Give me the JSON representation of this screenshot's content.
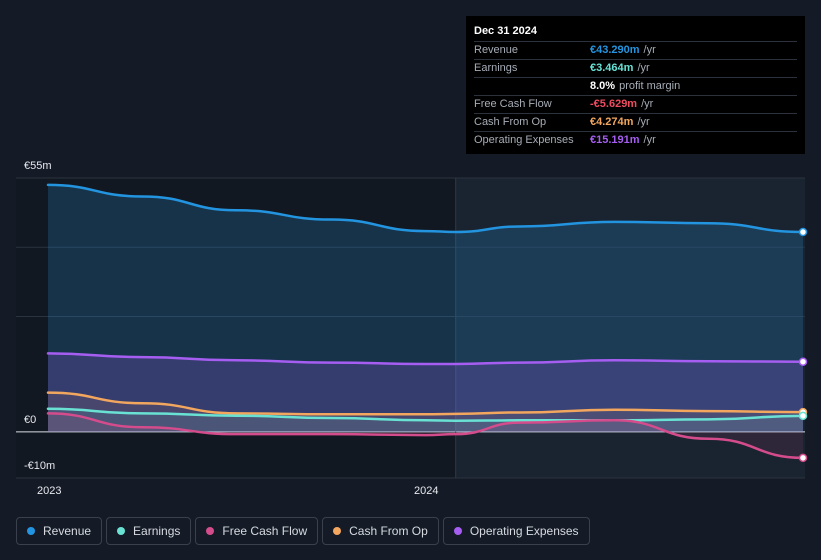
{
  "tooltip": {
    "date": "Dec 31 2024",
    "rows": [
      {
        "label": "Revenue",
        "value": "€43.290m",
        "unit": "/yr",
        "color": "#2394df"
      },
      {
        "label": "Earnings",
        "value": "€3.464m",
        "unit": "/yr",
        "color": "#69e2d4"
      },
      {
        "label": "",
        "value": "8.0%",
        "unit": "profit margin",
        "color": "#ffffff"
      },
      {
        "label": "Free Cash Flow",
        "value": "-€5.629m",
        "unit": "/yr",
        "color": "#ed4c60"
      },
      {
        "label": "Cash From Op",
        "value": "€4.274m",
        "unit": "/yr",
        "color": "#f2a65e"
      },
      {
        "label": "Operating Expenses",
        "value": "€15.191m",
        "unit": "/yr",
        "color": "#a65ef2"
      }
    ]
  },
  "axis": {
    "y_top": "€55m",
    "y_zero": "€0",
    "y_bottom": "-€10m",
    "x_ticks": [
      "2023",
      "2024"
    ]
  },
  "legend": [
    {
      "label": "Revenue",
      "color": "#2394df"
    },
    {
      "label": "Earnings",
      "color": "#69e2d4"
    },
    {
      "label": "Free Cash Flow",
      "color": "#d44c8c"
    },
    {
      "label": "Cash From Op",
      "color": "#f2a65e"
    },
    {
      "label": "Operating Expenses",
      "color": "#a65ef2"
    }
  ],
  "chart_data": {
    "type": "area",
    "x": [
      2022.92,
      2023.17,
      2023.42,
      2023.67,
      2023.92,
      2024.0,
      2024.17,
      2024.42,
      2024.67,
      2024.92
    ],
    "ylim": [
      -10,
      55
    ],
    "grid": true,
    "series": [
      {
        "name": "Revenue",
        "color": "#2394df",
        "values": [
          53.5,
          51.0,
          48.0,
          46.0,
          43.5,
          43.3,
          44.5,
          45.5,
          45.2,
          43.29
        ]
      },
      {
        "name": "Operating Expenses",
        "color": "#a65ef2",
        "values": [
          17.0,
          16.2,
          15.5,
          15.0,
          14.7,
          14.7,
          15.0,
          15.5,
          15.3,
          15.191
        ]
      },
      {
        "name": "Cash From Op",
        "color": "#f2a65e",
        "values": [
          8.5,
          6.2,
          4.0,
          3.8,
          3.8,
          3.9,
          4.2,
          4.8,
          4.5,
          4.274
        ]
      },
      {
        "name": "Earnings",
        "color": "#69e2d4",
        "values": [
          5.0,
          4.0,
          3.5,
          3.0,
          2.5,
          2.4,
          2.5,
          2.5,
          2.7,
          3.464
        ]
      },
      {
        "name": "Free Cash Flow",
        "color": "#d44c8c",
        "values": [
          4.0,
          1.0,
          -0.5,
          -0.5,
          -0.7,
          -0.5,
          2.0,
          2.5,
          -1.5,
          -5.629
        ]
      }
    ]
  }
}
